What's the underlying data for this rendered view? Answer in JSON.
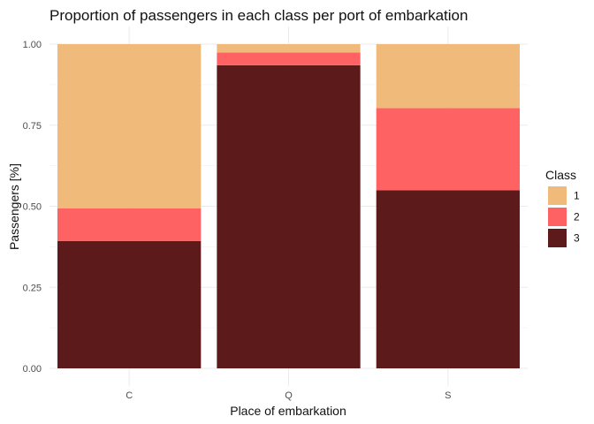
{
  "chart_data": {
    "type": "bar",
    "stacked": true,
    "title": "Proportion of passengers in each class per port of embarkation",
    "xlabel": "Place of embarkation",
    "ylabel": "Passengers [%]",
    "categories": [
      "C",
      "Q",
      "S"
    ],
    "series": [
      {
        "name": "1",
        "values": [
          0.506,
          0.026,
          0.197
        ],
        "color": "#F0BA7A"
      },
      {
        "name": "2",
        "values": [
          0.101,
          0.039,
          0.254
        ],
        "color": "#FF6262"
      },
      {
        "name": "3",
        "values": [
          0.393,
          0.935,
          0.549
        ],
        "color": "#5C1A1A"
      }
    ],
    "ylim": [
      0,
      1
    ],
    "yticks": [
      "0.00",
      "0.25",
      "0.50",
      "0.75",
      "1.00"
    ],
    "ytick_values": [
      0,
      0.25,
      0.5,
      0.75,
      1
    ],
    "legend_title": "Class",
    "legend_position": "right",
    "grid": true
  }
}
